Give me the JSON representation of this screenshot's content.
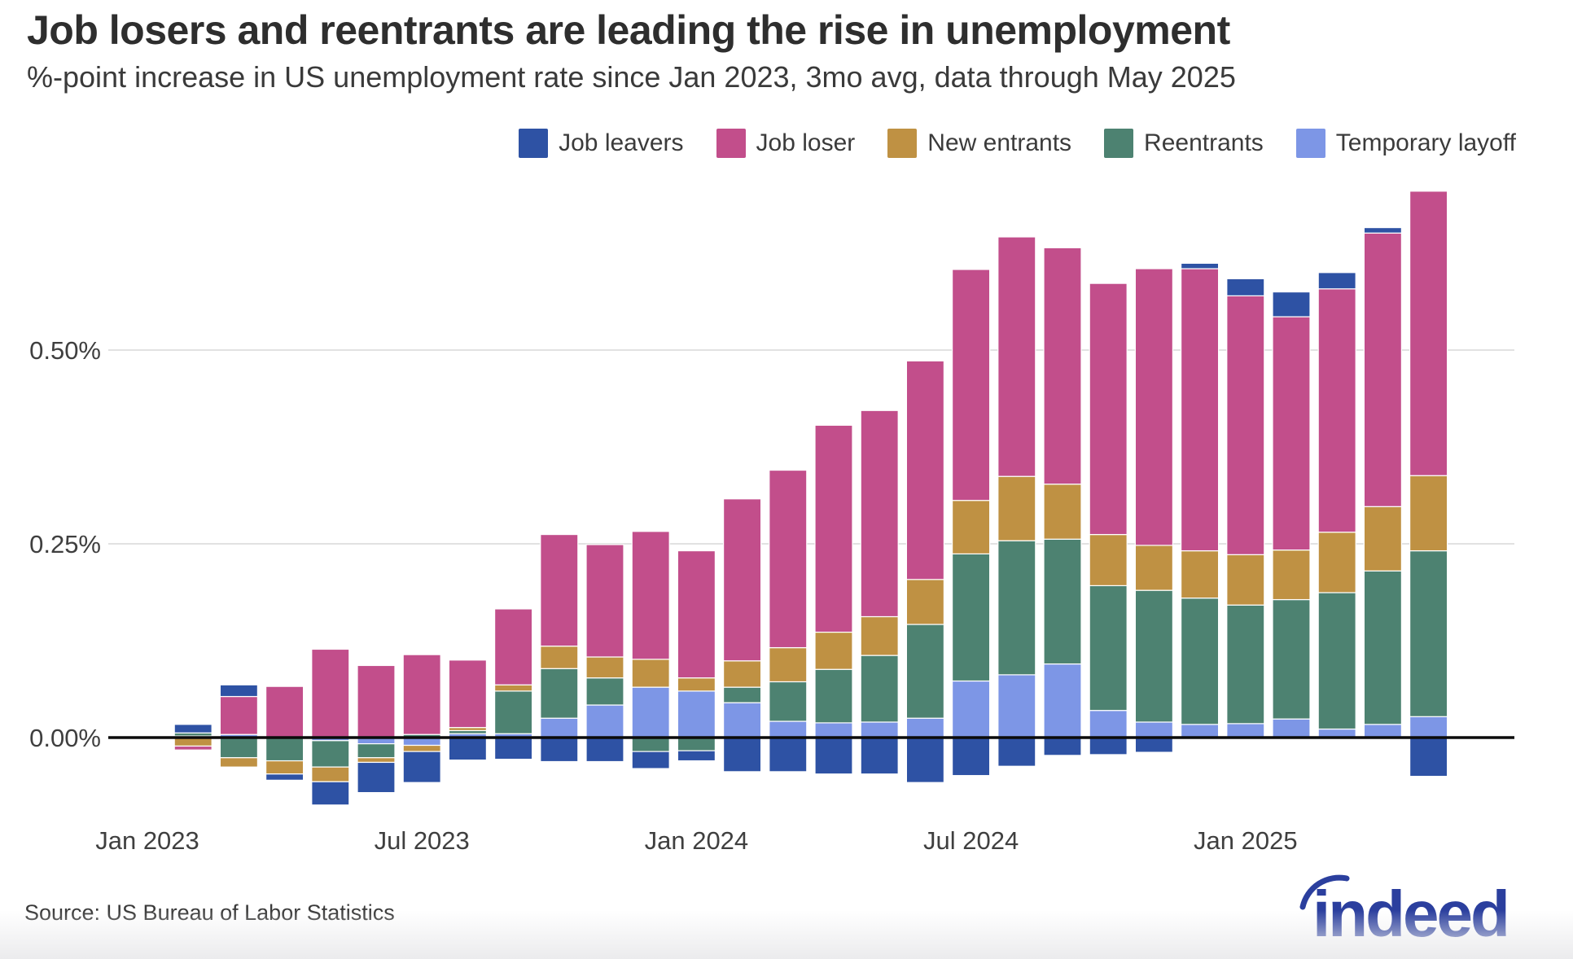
{
  "header": {
    "title": "Job losers and reentrants are leading the rise in unemployment",
    "subtitle": "%-point increase in US unemployment rate since Jan 2023, 3mo avg, data through May 2025"
  },
  "footer": {
    "source": "Source: US Bureau of Labor Statistics",
    "logo_text": "indeed",
    "logo_color": "#2b3f9e"
  },
  "chart_data": {
    "type": "bar",
    "subtype": "stacked-diverging",
    "title": "Job losers and reentrants are leading the rise in unemployment",
    "xlabel": "",
    "ylabel": "%-point increase in US unemployment rate since Jan 2023",
    "grid": "horizontal",
    "legend_position": "top",
    "ylim": [
      -0.1,
      0.72
    ],
    "y_ticks": [
      {
        "value": 0.0,
        "label": "0.00%"
      },
      {
        "value": 0.25,
        "label": "0.25%"
      },
      {
        "value": 0.5,
        "label": "0.50%"
      }
    ],
    "x_ticks": [
      {
        "month_index": 0,
        "label": "Jan 2023"
      },
      {
        "month_index": 6,
        "label": "Jul 2023"
      },
      {
        "month_index": 12,
        "label": "Jan 2024"
      },
      {
        "month_index": 18,
        "label": "Jul 2024"
      },
      {
        "month_index": 24,
        "label": "Jan 2025"
      }
    ],
    "categories": [
      "Jan 2023",
      "Feb 2023",
      "Mar 2023",
      "Apr 2023",
      "May 2023",
      "Jun 2023",
      "Jul 2023",
      "Aug 2023",
      "Sep 2023",
      "Oct 2023",
      "Nov 2023",
      "Dec 2023",
      "Jan 2024",
      "Feb 2024",
      "Mar 2024",
      "Apr 2024",
      "May 2024",
      "Jun 2024",
      "Jul 2024",
      "Aug 2024",
      "Sep 2024",
      "Oct 2024",
      "Nov 2024",
      "Dec 2024",
      "Jan 2025",
      "Feb 2025",
      "Mar 2025",
      "Apr 2025",
      "May 2025"
    ],
    "legend_order": [
      "Job leavers",
      "Job loser",
      "New entrants",
      "Reentrants",
      "Temporary layoff"
    ],
    "series": [
      {
        "name": "Temporary layoff",
        "color": "#7d96e6",
        "values": [
          0,
          0.002,
          0.004,
          0.0,
          -0.004,
          -0.008,
          -0.01,
          0.005,
          0.005,
          0.025,
          0.042,
          0.065,
          0.06,
          0.045,
          0.021,
          0.019,
          0.02,
          0.025,
          0.073,
          0.081,
          0.095,
          0.035,
          0.02,
          0.017,
          0.018,
          0.024,
          0.011,
          0.017,
          0.027
        ]
      },
      {
        "name": "Reentrants",
        "color": "#4d8271",
        "values": [
          0,
          0.004,
          -0.026,
          -0.03,
          -0.034,
          -0.018,
          0.004,
          0.004,
          0.055,
          0.064,
          0.035,
          -0.018,
          -0.017,
          0.02,
          0.051,
          0.069,
          0.086,
          0.121,
          0.164,
          0.173,
          0.161,
          0.161,
          0.17,
          0.163,
          0.153,
          0.154,
          0.176,
          0.198,
          0.214
        ]
      },
      {
        "name": "New entrants",
        "color": "#bf9143",
        "values": [
          0,
          -0.011,
          -0.012,
          -0.017,
          -0.019,
          -0.006,
          -0.008,
          0.004,
          0.008,
          0.029,
          0.027,
          0.036,
          0.017,
          0.034,
          0.044,
          0.048,
          0.05,
          0.058,
          0.069,
          0.083,
          0.071,
          0.066,
          0.058,
          0.061,
          0.065,
          0.064,
          0.078,
          0.083,
          0.097
        ]
      },
      {
        "name": "Job loser",
        "color": "#c24e8b",
        "values": [
          0,
          -0.005,
          0.049,
          0.066,
          0.114,
          0.093,
          0.103,
          0.087,
          0.098,
          0.144,
          0.145,
          0.165,
          0.164,
          0.209,
          0.229,
          0.267,
          0.266,
          0.282,
          0.298,
          0.309,
          0.305,
          0.324,
          0.357,
          0.364,
          0.334,
          0.301,
          0.314,
          0.353,
          0.367
        ]
      },
      {
        "name": "Job leavers",
        "color": "#2e52a4",
        "values": [
          0,
          0.011,
          0.015,
          -0.008,
          -0.03,
          -0.039,
          -0.04,
          -0.029,
          -0.028,
          -0.031,
          -0.031,
          -0.022,
          -0.013,
          -0.044,
          -0.044,
          -0.047,
          -0.047,
          -0.058,
          -0.049,
          -0.037,
          -0.023,
          -0.022,
          -0.019,
          0.007,
          0.022,
          0.032,
          0.021,
          0.007,
          -0.05
        ]
      }
    ],
    "axis_colors": {
      "zero_line": "#0b0b0b",
      "gridline": "#d9d9d9",
      "tick_text": "#3f3f3f"
    }
  }
}
